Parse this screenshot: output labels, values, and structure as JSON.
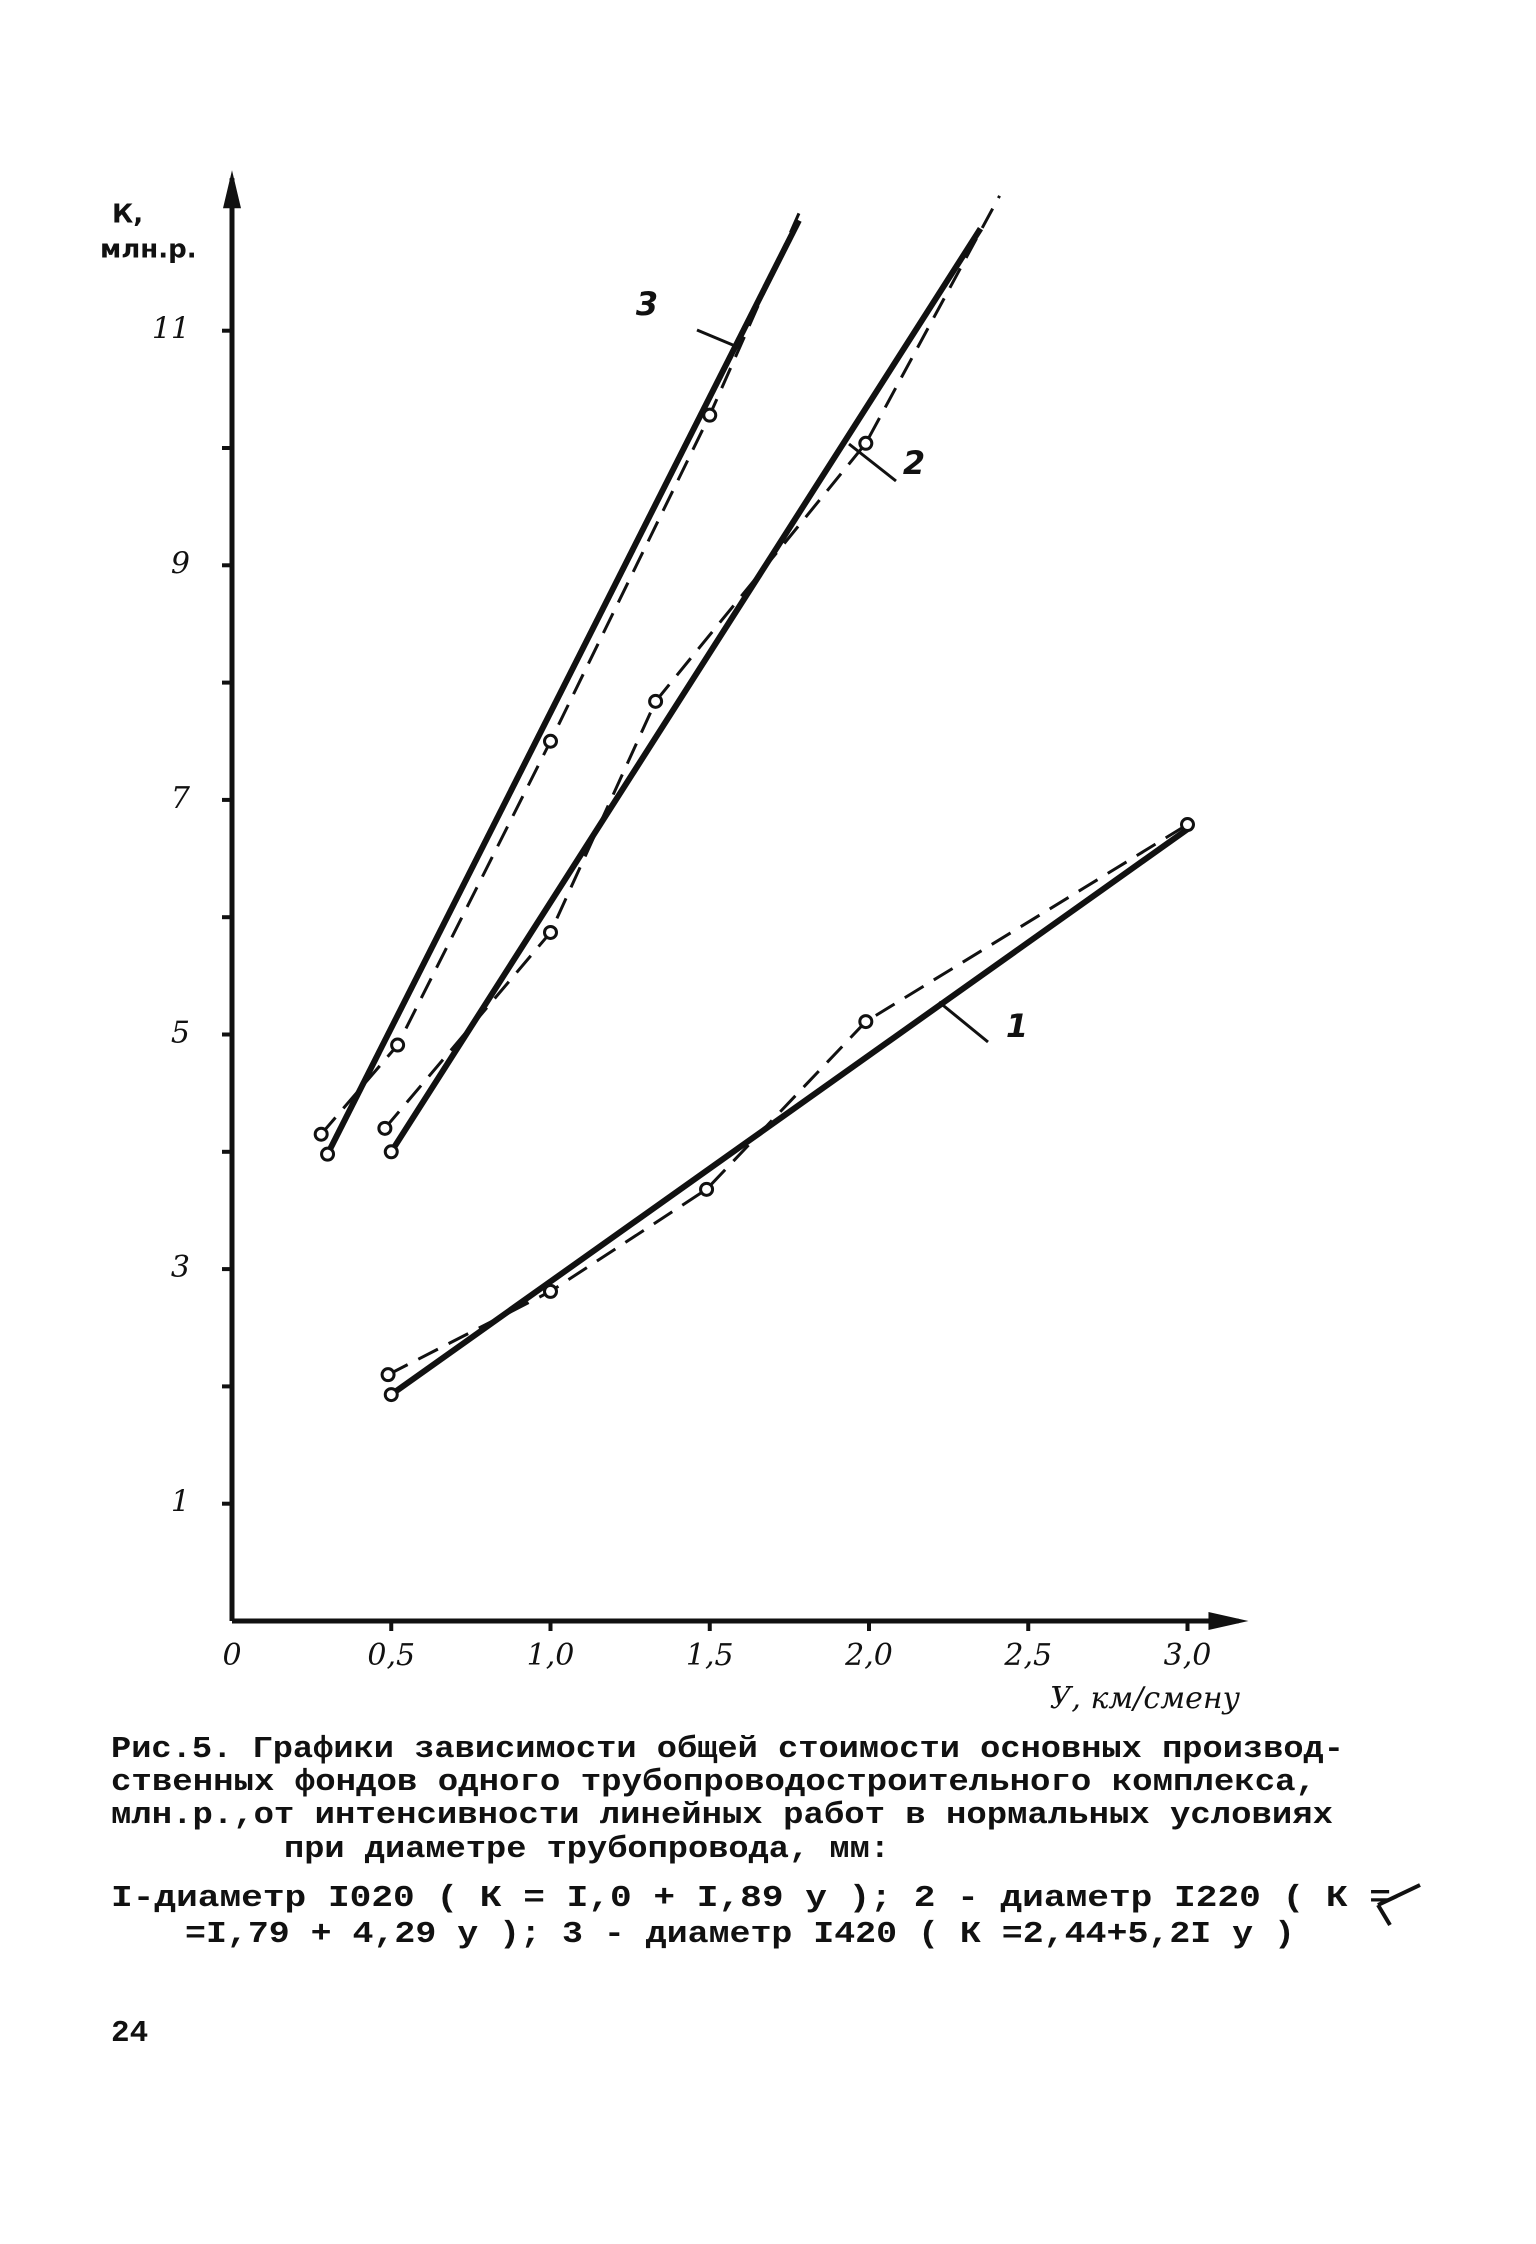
{
  "chart_data": {
    "type": "line",
    "ylabel": [
      "К,",
      "млн.р."
    ],
    "xlabel": "У, км/смену",
    "xlim": [
      0,
      3.16
    ],
    "ylim": [
      0,
      12.3
    ],
    "xticks": [
      {
        "value": 0,
        "label": "0"
      },
      {
        "value": 0.5,
        "label": "0,5"
      },
      {
        "value": 1.0,
        "label": "1,0"
      },
      {
        "value": 1.5,
        "label": "1,5"
      },
      {
        "value": 2.0,
        "label": "2,0"
      },
      {
        "value": 2.5,
        "label": "2,5"
      },
      {
        "value": 3.0,
        "label": "3,0"
      }
    ],
    "yticks": [
      1,
      3,
      5,
      7,
      9,
      11
    ],
    "yticks_minor": [
      2,
      4,
      6,
      8,
      10
    ],
    "color": "#111111",
    "series": [
      {
        "name": "1",
        "style": "solid",
        "x": [
          0.5,
          3.0
        ],
        "values": [
          1.93,
          6.75
        ],
        "markers": [
          true,
          false
        ]
      },
      {
        "name": "2",
        "style": "solid",
        "x": [
          0.5,
          2.35
        ],
        "values": [
          4.0,
          11.87
        ],
        "markers": [
          true,
          false
        ]
      },
      {
        "name": "3",
        "style": "solid",
        "x": [
          0.3,
          1.78
        ],
        "values": [
          3.98,
          11.94
        ],
        "markers": [
          true,
          false
        ]
      },
      {
        "style": "dashed",
        "x": [
          0.49,
          1.0,
          1.49,
          1.99,
          3.0
        ],
        "values": [
          2.1,
          2.81,
          3.68,
          5.11,
          6.79
        ],
        "markers": [
          true,
          true,
          true,
          true,
          true
        ]
      },
      {
        "style": "dashed",
        "x": [
          0.48,
          1.0,
          1.33,
          1.99,
          2.41
        ],
        "values": [
          4.2,
          5.87,
          7.84,
          10.04,
          12.15
        ],
        "markers": [
          true,
          true,
          true,
          true,
          false
        ]
      },
      {
        "style": "dashed",
        "x": [
          0.28,
          0.52,
          1.0,
          1.5,
          1.78
        ],
        "values": [
          4.15,
          4.91,
          7.5,
          10.28,
          12.0
        ],
        "markers": [
          true,
          true,
          true,
          true,
          false
        ]
      }
    ]
  },
  "caption_lines": [
    "Рис.5. Графики зависимости общей стоимости основных производ-",
    "ственных фондов одного трубопроводостроительного комплекса,",
    "млн.р.,от интенсивности линейных работ в нормальных условиях",
    "при диаметре трубопровода, мм:",
    "I-диаметр I020 ( К  = I,0 + I,89 у ); 2 - диаметр I220 ( К =",
    "=I,79 + 4,29 у ); 3 - диаметр I420 ( К =2,44+5,2I у )"
  ],
  "page_number": "24"
}
